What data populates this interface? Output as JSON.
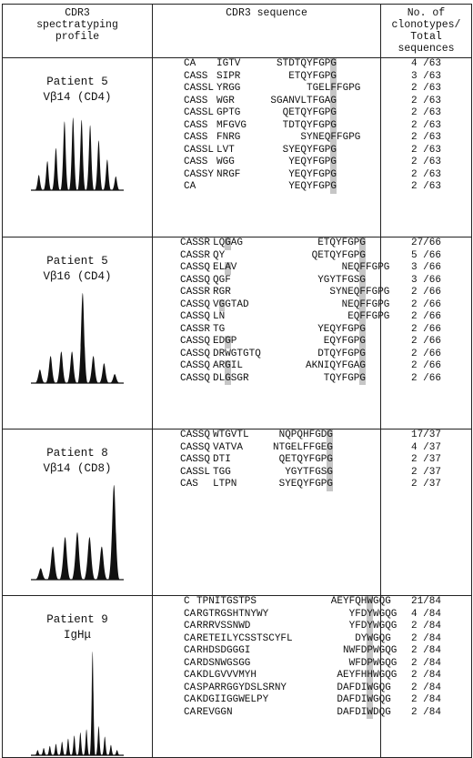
{
  "header": {
    "col1": [
      "CDR3",
      "spectratyping",
      "profile"
    ],
    "col2": "CDR3 sequence",
    "col3": [
      "No. of",
      "clonotypes/",
      "Total",
      "sequences"
    ]
  },
  "panels": [
    {
      "patient": "Patient 5",
      "subset": "Vβ14 (CD4)",
      "profile_peaks": [
        0.2,
        0.38,
        0.55,
        0.9,
        0.95,
        0.92,
        0.85,
        0.65,
        0.4,
        0.18
      ],
      "rows": [
        {
          "a": "CA",
          "b": "IGTV",
          "c": "STDTQYFGP",
          "h": "G",
          "d": "",
          "count": "4 /63"
        },
        {
          "a": "CASS",
          "b": "SIPR",
          "c": "ETQYFGP",
          "h": "G",
          "d": "",
          "count": "3 /63"
        },
        {
          "a": "CASSL",
          "b": "YRGG",
          "c": "TGEL",
          "h": "F",
          "d": "FGPG",
          "count": "2 /63"
        },
        {
          "a": "CASS",
          "b": "WGR",
          "c": "SGANVLTFGA",
          "h": "G",
          "d": "",
          "count": "2 /63"
        },
        {
          "a": "CASSL",
          "b": "GPTG",
          "c": "QETQYFGP",
          "h": "G",
          "d": "",
          "count": "2 /63"
        },
        {
          "a": "CASS",
          "b": "MFGVG",
          "c": "TDTQYFGP",
          "h": "G",
          "d": "",
          "count": "2 /63"
        },
        {
          "a": "CASS",
          "b": "FNRG",
          "c": "SYNEQ",
          "h": "F",
          "d": "FGPG",
          "count": "2 /63"
        },
        {
          "a": "CASSL",
          "b": "LVT",
          "c": "SYEQYFGP",
          "h": "G",
          "d": "",
          "count": "2 /63"
        },
        {
          "a": "CASS",
          "b": "WGG",
          "c": "YEQYFGP",
          "h": "G",
          "d": "",
          "count": "2 /63"
        },
        {
          "a": "CASSY",
          "b": "NRGF",
          "c": "YEQYFGP",
          "h": "G",
          "d": "",
          "count": "2 /63"
        },
        {
          "a": "CA",
          "b": "",
          "c": "YEQYFGP",
          "h": "G",
          "d": "",
          "count": "2 /63"
        }
      ]
    },
    {
      "patient": "Patient 5",
      "subset": "Vβ16 (CD4)",
      "profile_peaks": [
        0.15,
        0.3,
        0.35,
        0.35,
        1.0,
        0.3,
        0.22,
        0.1
      ],
      "rows": [
        {
          "a": "CASSR",
          "b": "LQ",
          "h1": "G",
          "b2": "AG",
          "c": "ETQYFGP",
          "h": "G",
          "d": "",
          "count": "27/66"
        },
        {
          "a": "CASSR",
          "b": "QY",
          "c": "QETQYFGP",
          "h": "G",
          "d": "",
          "count": "5 /66"
        },
        {
          "a": "CASSQ",
          "b": "EL",
          "h1": "A",
          "b2": "V",
          "c": "NEQ",
          "h": "F",
          "d": "FGPG",
          "count": "3 /66"
        },
        {
          "a": "CASSQ",
          "b": "QGF",
          "c": "YGYTFGS",
          "h": "G",
          "d": "",
          "count": "3 /66"
        },
        {
          "a": "CASSR",
          "b": "RGR",
          "c": "SYNEQ",
          "h": "F",
          "d": "FGPG",
          "count": "2 /66"
        },
        {
          "a": "CASSQ",
          "b": "V",
          "h1": "G",
          "b2": "GTAD",
          "c": "NEQ",
          "h": "F",
          "d": "FGPG",
          "count": "2 /66"
        },
        {
          "a": "CASSQ",
          "b": "LN",
          "c": "EQ",
          "h": "F",
          "d": "FGPG",
          "count": "2 /66"
        },
        {
          "a": "CASSR",
          "b": "TG",
          "c": "YEQYFGP",
          "h": "G",
          "d": "",
          "count": "2 /66"
        },
        {
          "a": "CASSQ",
          "b": "ED",
          "h1": "G",
          "b2": "P",
          "c": "EQYFGP",
          "h": "G",
          "d": "",
          "count": "2 /66"
        },
        {
          "a": "CASSQ",
          "b": "DRWGTGTQ",
          "c": "DTQYFGP",
          "h": "G",
          "d": "",
          "count": "2 /66"
        },
        {
          "a": "CASSQ",
          "b": "AR",
          "h1": "G",
          "b2": "IL",
          "c": "AKNIQYFGA",
          "h": "G",
          "d": "",
          "count": "2 /66"
        },
        {
          "a": "CASSQ",
          "b": "DL",
          "h1": "G",
          "b2": "SGR",
          "c": "TQYFGP",
          "h": "G",
          "d": "",
          "count": "2 /66"
        }
      ]
    },
    {
      "patient": "Patient 8",
      "subset": "Vβ14 (CD8)",
      "profile_peaks": [
        0.12,
        0.35,
        0.45,
        0.5,
        0.45,
        0.35,
        1.0
      ],
      "rows": [
        {
          "a": "CASSQ",
          "b": "WTGVTL",
          "c": "NQPQHFGD",
          "h": "G",
          "d": "",
          "count": "17/37"
        },
        {
          "a": "CASSQ",
          "b": "VATVA",
          "c": "NTGELFFGE",
          "h": "G",
          "d": "",
          "count": "4 /37"
        },
        {
          "a": "CASSQ",
          "b": "DTI",
          "c": "QETQYFGP",
          "h": "G",
          "d": "",
          "count": "2 /37"
        },
        {
          "a": "CASSL",
          "b": "TGG",
          "c": "YGYTFGS",
          "h": "G",
          "d": "",
          "count": "2 /37"
        },
        {
          "a": "CAS",
          "b": "LTPN",
          "c": "SYEQYFGP",
          "h": "G",
          "d": "",
          "count": "2 /37"
        }
      ]
    },
    {
      "patient": "Patient 9",
      "subset": "IgHμ",
      "profile_peaks": [
        0.05,
        0.07,
        0.09,
        0.11,
        0.13,
        0.16,
        0.19,
        0.22,
        0.25,
        1.0,
        0.28,
        0.18,
        0.1,
        0.05
      ],
      "rows": [
        {
          "a": "C",
          "b": "TPNITGSTPS",
          "c": "AEYFQH",
          "h": "W",
          "d": "GQG",
          "count": "21/84"
        },
        {
          "a": "CA",
          "b": "RGTRGSHTNYWY",
          "c": "YFD",
          "h": "Y",
          "d": "WGQG",
          "count": "4 /84"
        },
        {
          "a": "CA",
          "b": "RRRVSSNWD",
          "c": "YFD",
          "h": "Y",
          "d": "WGQG",
          "count": "2 /84"
        },
        {
          "a": "CA",
          "b": "RETEILYCSSTSCYFL",
          "c": "DY",
          "h": "W",
          "d": "GQG",
          "count": "2 /84"
        },
        {
          "a": "CA",
          "b": "RHDSDGGGI",
          "c": "NWFD",
          "h": "P",
          "d": "WGQG",
          "count": "2 /84"
        },
        {
          "a": "CA",
          "b": "RDSNWGSGG",
          "c": "WFD",
          "h": "P",
          "d": "WGQG",
          "count": "2 /84"
        },
        {
          "a": "CA",
          "b": "KDLGVVVMYH",
          "c": "AEYFH",
          "h": "H",
          "d": "WGQG",
          "count": "2 /84"
        },
        {
          "a": "CA",
          "b": "SPARRGGYDSLSRNY",
          "c": "DAFDI",
          "h": "W",
          "d": "GQG",
          "count": "2 /84"
        },
        {
          "a": "CA",
          "b": "KDGIIGGWELPY",
          "c": "DAFDI",
          "h": "W",
          "d": "GQG",
          "count": "2 /84"
        },
        {
          "a": "CA",
          "b": "REVGGN",
          "c": "DAFDI",
          "h": "W",
          "d": "DQG",
          "count": "2 /84"
        }
      ]
    }
  ]
}
